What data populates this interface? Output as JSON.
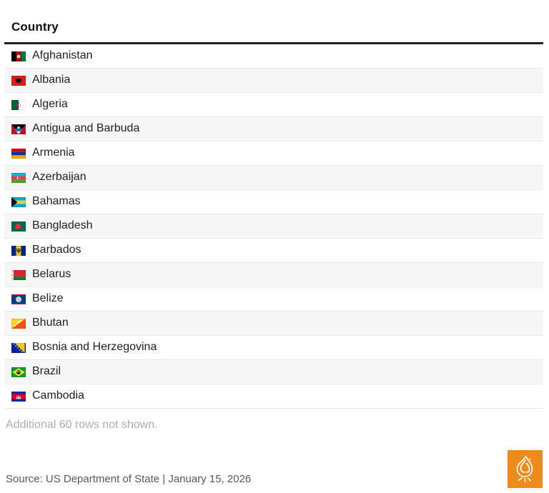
{
  "table": {
    "header": "Country",
    "rows": [
      {
        "name": "Afghanistan",
        "flag": "afghanistan-flag-icon"
      },
      {
        "name": "Albania",
        "flag": "albania-flag-icon"
      },
      {
        "name": "Algeria",
        "flag": "algeria-flag-icon"
      },
      {
        "name": "Antigua and Barbuda",
        "flag": "antigua-and-barbuda-flag-icon"
      },
      {
        "name": "Armenia",
        "flag": "armenia-flag-icon"
      },
      {
        "name": "Azerbaijan",
        "flag": "azerbaijan-flag-icon"
      },
      {
        "name": "Bahamas",
        "flag": "bahamas-flag-icon"
      },
      {
        "name": "Bangladesh",
        "flag": "bangladesh-flag-icon"
      },
      {
        "name": "Barbados",
        "flag": "barbados-flag-icon"
      },
      {
        "name": "Belarus",
        "flag": "belarus-flag-icon"
      },
      {
        "name": "Belize",
        "flag": "belize-flag-icon"
      },
      {
        "name": "Bhutan",
        "flag": "bhutan-flag-icon"
      },
      {
        "name": "Bosnia and Herzegovina",
        "flag": "bosnia-and-herzegovina-flag-icon"
      },
      {
        "name": "Brazil",
        "flag": "brazil-flag-icon"
      },
      {
        "name": "Cambodia",
        "flag": "cambodia-flag-icon"
      }
    ],
    "note": "Additional 60 rows not shown."
  },
  "footer": {
    "source": "Source: US Department of State | January 15, 2026",
    "logo": "al-jazeera-logo"
  },
  "colors": {
    "brand_orange": "#EF8A1D",
    "row_stripe": "#F7F7F7",
    "header_rule": "#222222",
    "note_text": "#AEAEAE",
    "source_text": "#595959"
  }
}
